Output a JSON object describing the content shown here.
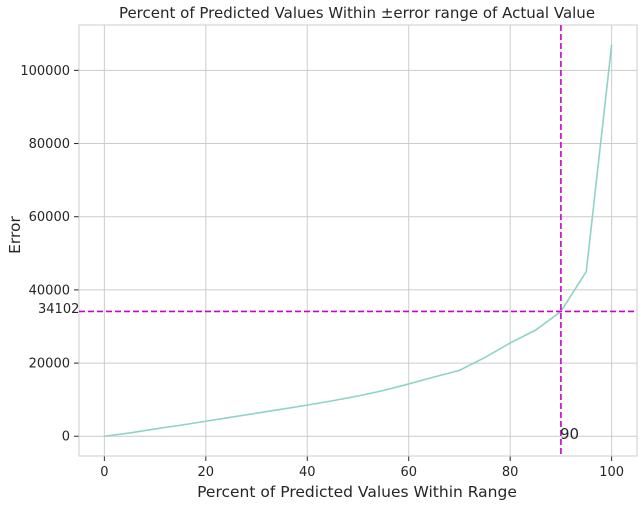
{
  "chart_data": {
    "type": "line",
    "title": "Percent of Predicted Values Within ±error range of Actual Value",
    "xlabel": "Percent of Predicted Values Within Range",
    "ylabel": "Error",
    "xlim": [
      -5,
      105
    ],
    "ylim": [
      -5400,
      112400
    ],
    "xticks": [
      0,
      20,
      40,
      60,
      80,
      100
    ],
    "yticks": [
      0,
      20000,
      40000,
      60000,
      80000,
      100000
    ],
    "grid": true,
    "series": [
      {
        "color": "#8dd3c7",
        "x": [
          0,
          5,
          10,
          15,
          20,
          25,
          30,
          35,
          40,
          45,
          50,
          55,
          60,
          65,
          70,
          75,
          80,
          85,
          90,
          95,
          100
        ],
        "y": [
          0,
          900,
          2000,
          3000,
          4100,
          5200,
          6300,
          7400,
          8500,
          9700,
          11000,
          12500,
          14300,
          16200,
          18000,
          21500,
          25500,
          29000,
          34102,
          45000,
          107000
        ]
      }
    ],
    "reference_lines": {
      "color": "#cc00cc",
      "vertical": {
        "x": 90,
        "label": "90"
      },
      "horizontal": {
        "y": 34102,
        "label": "34102"
      }
    }
  }
}
